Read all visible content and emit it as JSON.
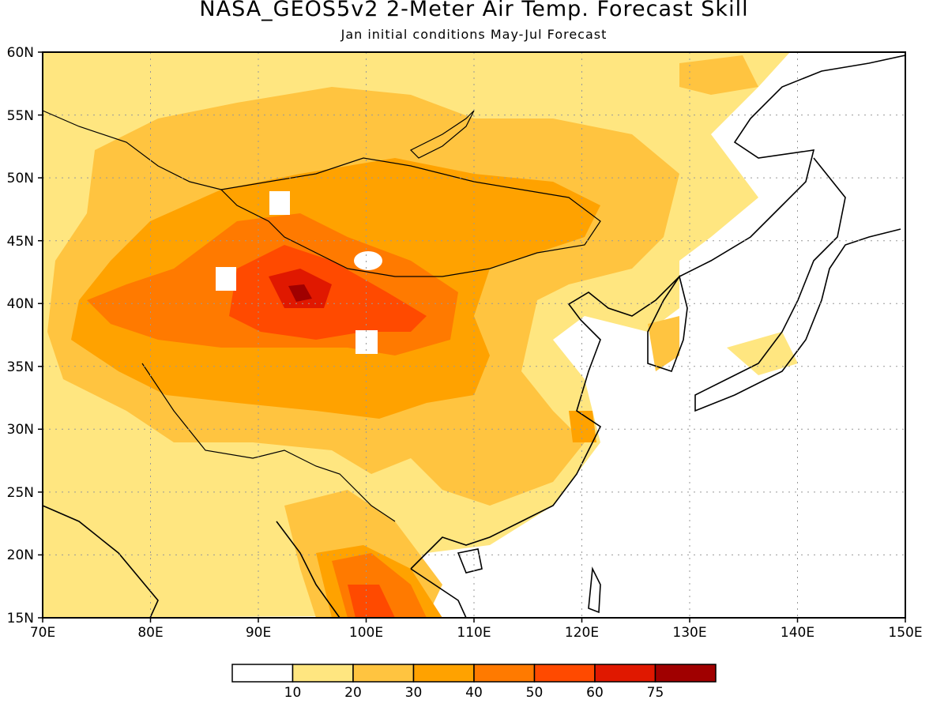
{
  "title": "NASA_GEOS5v2 2-Meter Air Temp. Forecast Skill",
  "subtitle": "Jan initial conditions  May-Jul Forecast",
  "map": {
    "lon_range": [
      70,
      150
    ],
    "lat_range": [
      15,
      60
    ],
    "lon_ticks": [
      "70E",
      "80E",
      "90E",
      "100E",
      "110E",
      "120E",
      "130E",
      "140E",
      "150E"
    ],
    "lat_ticks": [
      "15N",
      "20N",
      "25N",
      "30N",
      "35N",
      "40N",
      "45N",
      "50N",
      "55N",
      "60N"
    ],
    "gridlines": "dotted"
  },
  "colorbar": {
    "labels": [
      "10",
      "20",
      "30",
      "40",
      "50",
      "60",
      "75"
    ],
    "colors": [
      "#ffffff",
      "#ffe680",
      "#ffc440",
      "#ffa200",
      "#ff7a00",
      "#ff4a00",
      "#e01800",
      "#a00000"
    ]
  }
}
